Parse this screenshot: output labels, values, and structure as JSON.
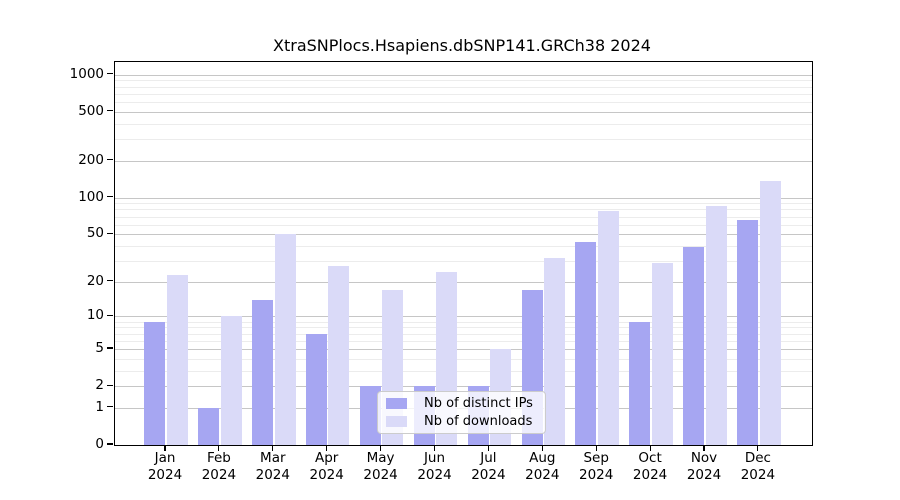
{
  "title": "XtraSNPlocs.Hsapiens.dbSNP141.GRCh38 2024",
  "year": "2024",
  "legend": [
    {
      "label": "Nb of distinct IPs",
      "color": "#a6a6f2"
    },
    {
      "label": "Nb of downloads",
      "color": "#dadaf8"
    }
  ],
  "chart_data": {
    "type": "bar",
    "title": "XtraSNPlocs.Hsapiens.dbSNP141.GRCh38 2024",
    "categories": [
      "Jan",
      "Feb",
      "Mar",
      "Apr",
      "May",
      "Jun",
      "Jul",
      "Aug",
      "Sep",
      "Oct",
      "Nov",
      "Dec"
    ],
    "category_year": "2024",
    "series": [
      {
        "name": "Nb of distinct IPs",
        "color": "#a6a6f2",
        "values": [
          9,
          1,
          14,
          7,
          2,
          2,
          2,
          17,
          43,
          9,
          39,
          66
        ]
      },
      {
        "name": "Nb of downloads",
        "color": "#dadaf8",
        "values": [
          23,
          10,
          50,
          27,
          17,
          24,
          5,
          32,
          78,
          29,
          85,
          137
        ]
      }
    ],
    "xlabel": "",
    "ylabel": "",
    "y_scale": "log1p",
    "y_ticks": [
      0,
      1,
      2,
      5,
      10,
      20,
      50,
      100,
      200,
      500,
      1000
    ],
    "y_minor_gridlines": [
      3,
      4,
      6,
      7,
      8,
      9,
      30,
      40,
      60,
      70,
      80,
      90,
      300,
      400,
      600,
      700,
      800,
      900
    ],
    "ylim": [
      0,
      1230
    ],
    "grid": true,
    "legend_position": "inside-bottom-center"
  }
}
